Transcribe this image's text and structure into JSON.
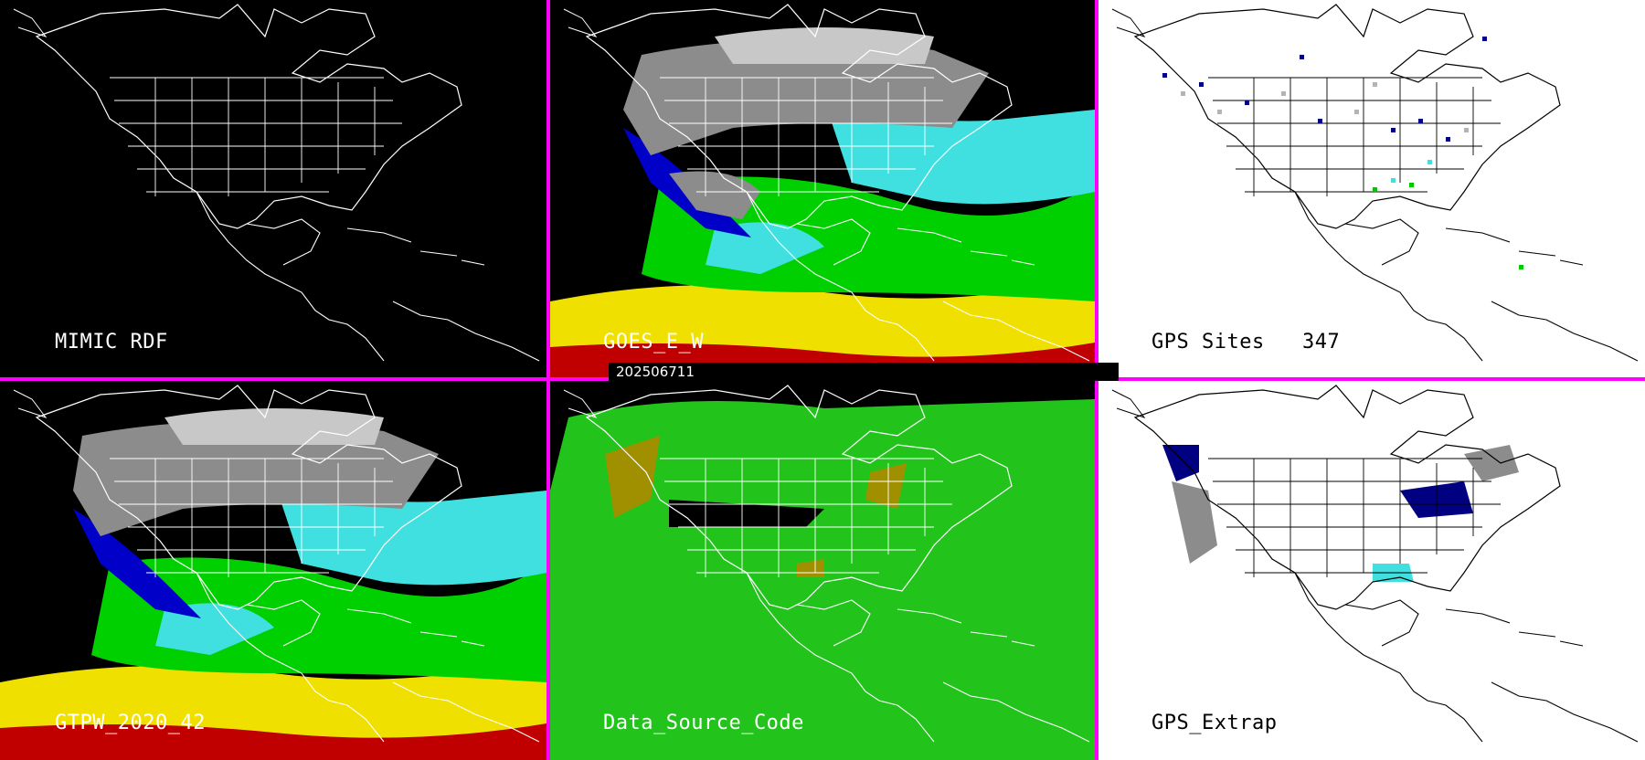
{
  "panels": [
    {
      "id": "p1",
      "label": "MIMIC RDF",
      "theme": "dark"
    },
    {
      "id": "p2",
      "label": "GOES_E_W",
      "theme": "dark"
    },
    {
      "id": "p3",
      "label": "GPS Sites",
      "count": "347",
      "theme": "light"
    },
    {
      "id": "p4",
      "label": "GTPW_2020_42",
      "theme": "dark"
    },
    {
      "id": "p5",
      "label": "Data_Source_Code",
      "theme": "dark"
    },
    {
      "id": "p6",
      "label": "GPS_Extrap",
      "theme": "light"
    }
  ],
  "timestamp": "202506711",
  "colors": {
    "divider": "#ff00ff",
    "map_outline_dark": "#ffffff",
    "map_outline_light": "#000000",
    "tpw_scale": [
      "#8c8c8c",
      "#c8c8c8",
      "#000080",
      "#0000c8",
      "#40e0e0",
      "#00d000",
      "#40f040",
      "#f0e000",
      "#c00000"
    ],
    "source_green": "#22c41c",
    "source_olive": "#a09000",
    "gps_site_colors": [
      "#000080",
      "#b4b4b4",
      "#40e0e0",
      "#00c800"
    ]
  }
}
